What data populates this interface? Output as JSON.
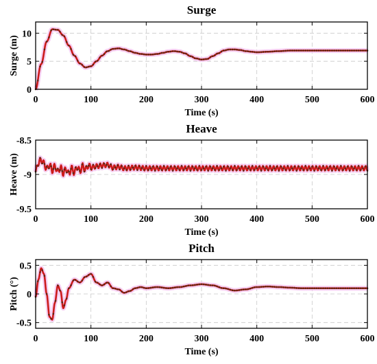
{
  "colors": {
    "line": "#cc1a1a",
    "marker": "#5a2a16",
    "halo": "#f3c6ee"
  },
  "chart_data": [
    {
      "type": "line",
      "title": "Surge",
      "xlabel": "Time (s)",
      "ylabel": "Surge (m)",
      "xlim": [
        0,
        600
      ],
      "ylim": [
        0,
        12
      ],
      "xticks": [
        "0",
        "100",
        "200",
        "300",
        "400",
        "500",
        "600"
      ],
      "yticks": [
        "0",
        "5",
        "10"
      ],
      "ytick_values": [
        0,
        5,
        10
      ],
      "grid": true,
      "series": [
        {
          "x": [
            0,
            10,
            20,
            30,
            40,
            50,
            60,
            70,
            80,
            90,
            100,
            110,
            120,
            130,
            140,
            150,
            160,
            170,
            180,
            190,
            200,
            210,
            220,
            230,
            240,
            250,
            260,
            270,
            280,
            290,
            300,
            310,
            320,
            330,
            340,
            350,
            360,
            370,
            380,
            390,
            400,
            420,
            440,
            460,
            480,
            500,
            520,
            540,
            560,
            580,
            600
          ],
          "y": [
            0,
            4.5,
            8.5,
            10.7,
            10.6,
            9.6,
            7.8,
            6.0,
            4.6,
            3.9,
            4.1,
            5.0,
            6.0,
            6.8,
            7.2,
            7.3,
            7.1,
            6.8,
            6.5,
            6.3,
            6.2,
            6.2,
            6.3,
            6.5,
            6.7,
            6.8,
            6.7,
            6.4,
            5.9,
            5.5,
            5.3,
            5.4,
            5.9,
            6.4,
            6.9,
            7.1,
            7.1,
            7.0,
            6.8,
            6.7,
            6.6,
            6.7,
            6.8,
            6.9,
            6.9,
            6.9,
            6.9,
            6.9,
            6.9,
            6.9,
            6.9
          ]
        }
      ]
    },
    {
      "type": "line",
      "title": "Heave",
      "xlabel": "Time (s)",
      "ylabel": "Heave (m)",
      "xlim": [
        0,
        600
      ],
      "ylim": [
        -9.5,
        -8.5
      ],
      "xticks": [
        "0",
        "100",
        "200",
        "300",
        "400",
        "500",
        "600"
      ],
      "yticks": [
        "-8.5",
        "-9",
        "-9.5"
      ],
      "ytick_values": [
        -8.5,
        -9,
        -9.5
      ],
      "grid": true,
      "series": [
        {
          "x": [
            0,
            5,
            10,
            15,
            20,
            25,
            30,
            35,
            40,
            45,
            50,
            55,
            60,
            65,
            70,
            75,
            80,
            85,
            90,
            95,
            100,
            110,
            120,
            130,
            140,
            150,
            160,
            180,
            200,
            250,
            300,
            350,
            400,
            450,
            500,
            550,
            600
          ],
          "y": [
            -8.96,
            -8.83,
            -8.79,
            -8.84,
            -8.92,
            -8.86,
            -8.94,
            -8.88,
            -8.96,
            -8.9,
            -8.98,
            -8.92,
            -8.99,
            -8.91,
            -8.97,
            -8.89,
            -8.95,
            -8.88,
            -8.93,
            -8.87,
            -8.9,
            -8.88,
            -8.87,
            -8.86,
            -8.9,
            -8.89,
            -8.91,
            -8.9,
            -8.91,
            -8.91,
            -8.91,
            -8.91,
            -8.91,
            -8.91,
            -8.91,
            -8.91,
            -8.91
          ],
          "oscillation_amplitude": 0.035
        }
      ]
    },
    {
      "type": "line",
      "title": "Pitch",
      "xlabel": "Time (s)",
      "ylabel": "Pitch (°)",
      "xlim": [
        0,
        600
      ],
      "ylim": [
        -0.6,
        0.6
      ],
      "xticks": [
        "0",
        "100",
        "200",
        "300",
        "400",
        "500",
        "600"
      ],
      "yticks": [
        "0.5",
        "0",
        "-0.5"
      ],
      "ytick_values": [
        0.5,
        0,
        -0.5
      ],
      "grid": true,
      "series": [
        {
          "x": [
            0,
            5,
            10,
            15,
            20,
            25,
            30,
            35,
            40,
            45,
            50,
            55,
            60,
            70,
            80,
            90,
            100,
            110,
            120,
            130,
            140,
            150,
            160,
            170,
            180,
            190,
            200,
            220,
            240,
            260,
            280,
            300,
            320,
            340,
            360,
            380,
            400,
            420,
            440,
            460,
            480,
            500,
            520,
            540,
            560,
            580,
            600
          ],
          "y": [
            -0.05,
            0.25,
            0.45,
            0.35,
            0.0,
            -0.4,
            -0.45,
            -0.15,
            0.15,
            0.05,
            -0.25,
            -0.1,
            0.1,
            0.25,
            0.2,
            0.3,
            0.35,
            0.2,
            0.15,
            0.2,
            0.1,
            0.08,
            0.02,
            0.05,
            0.1,
            0.12,
            0.1,
            0.12,
            0.1,
            0.12,
            0.15,
            0.17,
            0.15,
            0.1,
            0.06,
            0.08,
            0.12,
            0.13,
            0.12,
            0.11,
            0.1,
            0.1,
            0.1,
            0.1,
            0.1,
            0.1,
            0.1
          ]
        }
      ]
    }
  ]
}
